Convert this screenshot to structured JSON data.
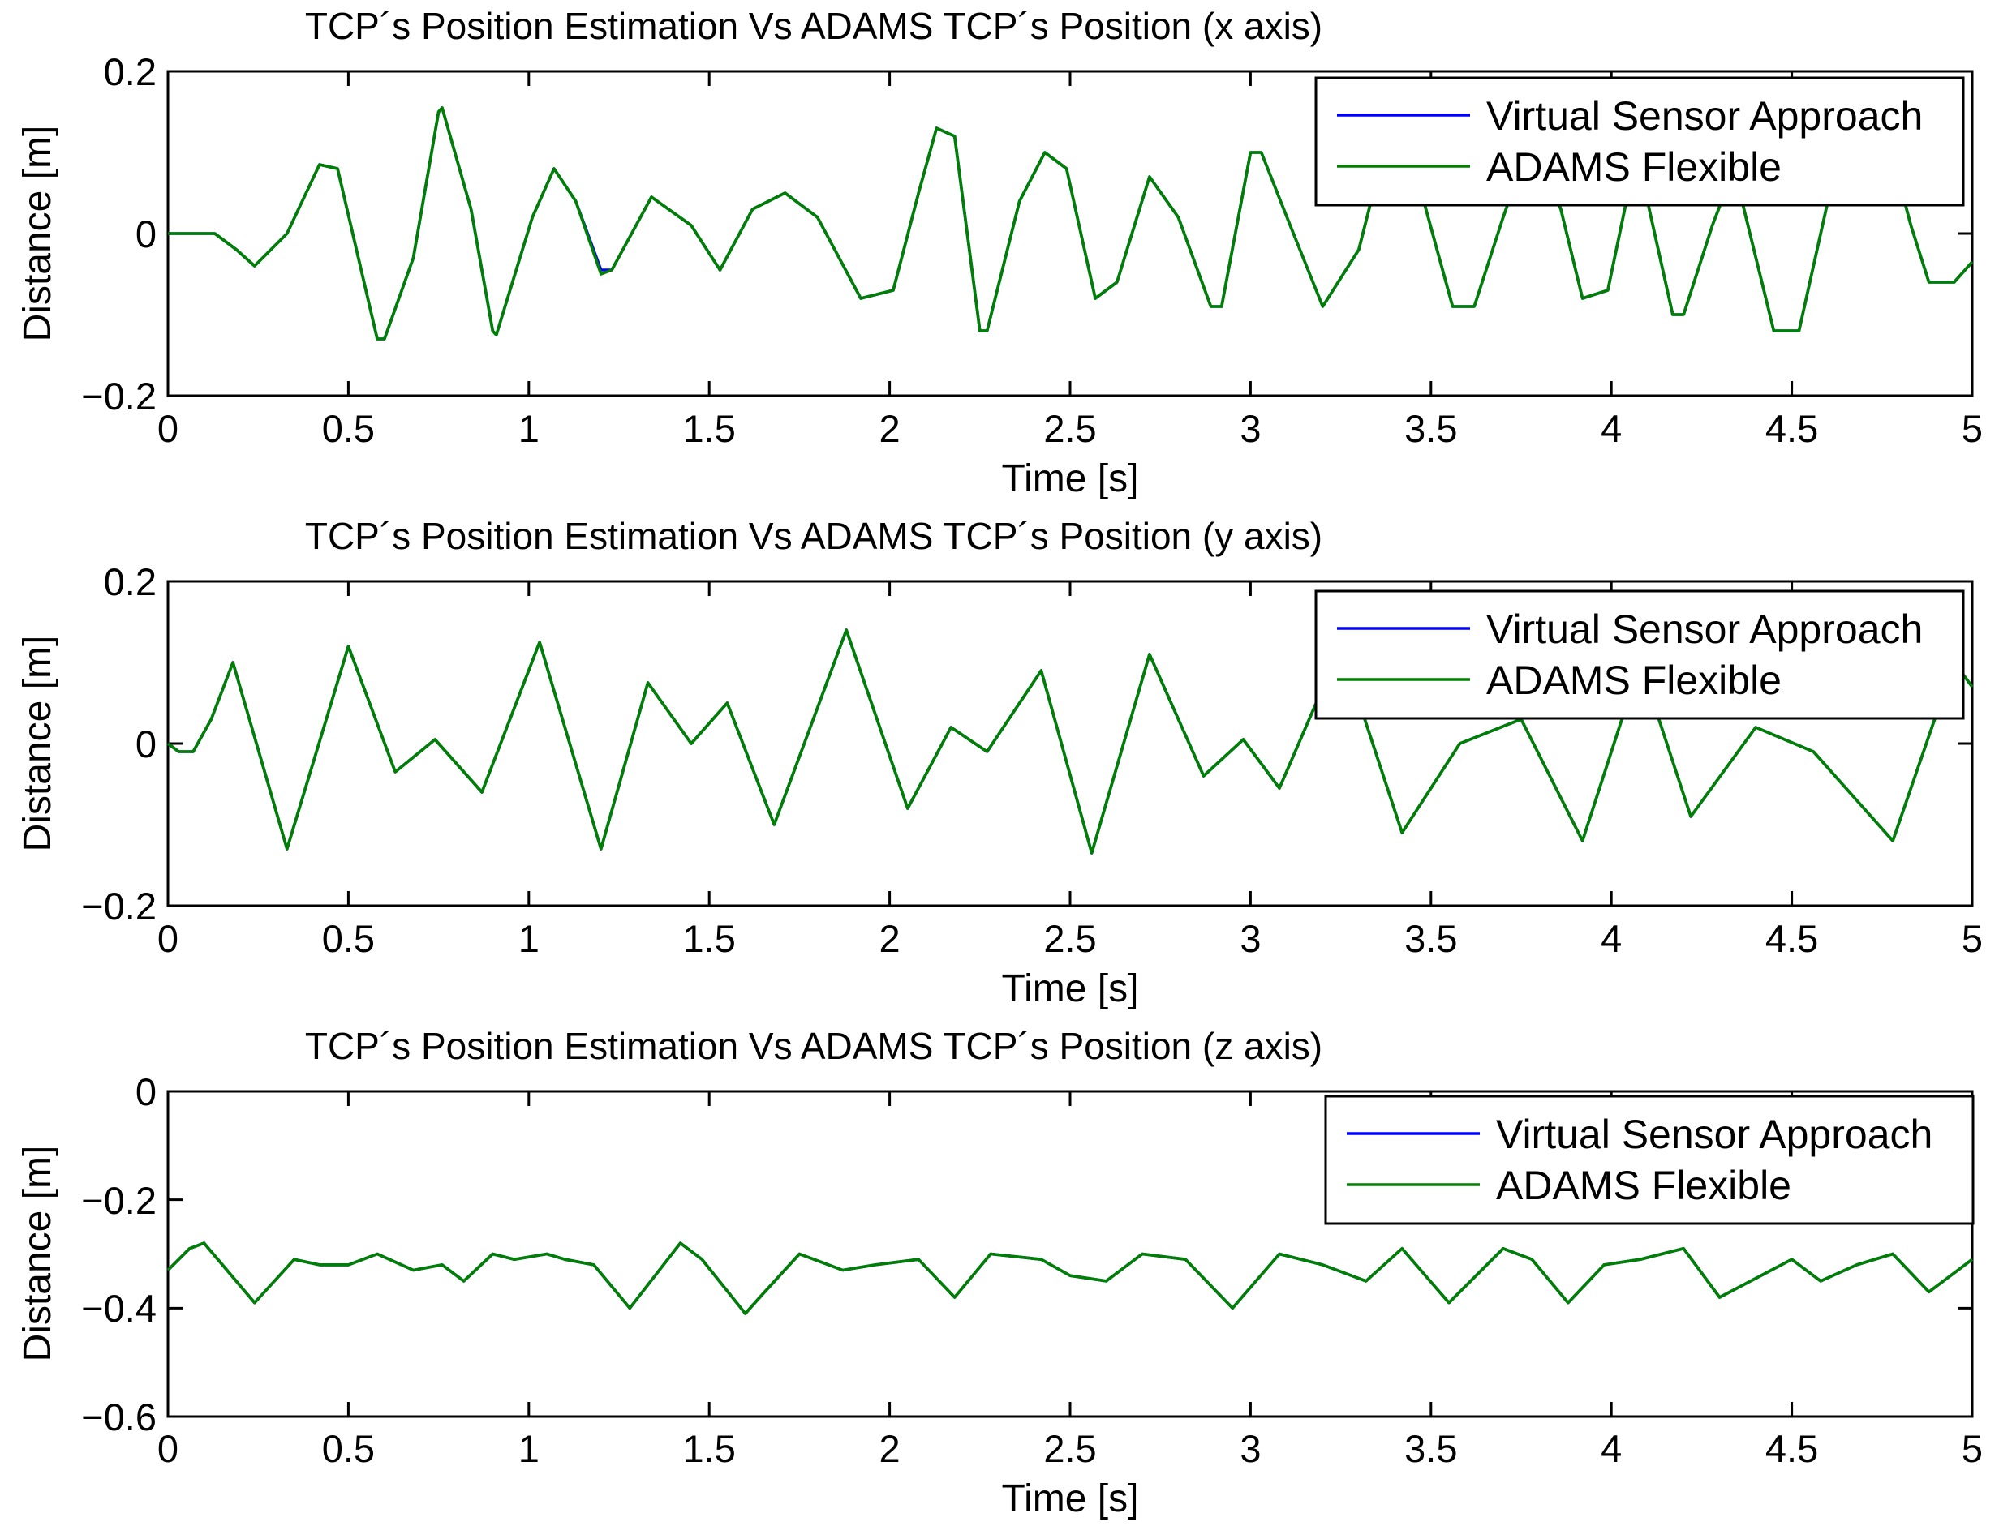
{
  "colors": {
    "virtual": "#0000ff",
    "adams": "#008000"
  },
  "chart_data": [
    {
      "type": "line",
      "title": "TCP´s Position Estimation Vs ADAMS TCP´s Position (x axis)",
      "xlabel": "Time [s]",
      "ylabel": "Distance [m]",
      "xlim": [
        0,
        5
      ],
      "ylim": [
        -0.2,
        0.2
      ],
      "xticks": [
        0,
        0.5,
        1,
        1.5,
        2,
        2.5,
        3,
        3.5,
        4,
        4.5,
        5
      ],
      "xtick_labels": [
        "0",
        "0.5",
        "1",
        "1.5",
        "2",
        "2.5",
        "3",
        "3.5",
        "4",
        "4.5",
        "5"
      ],
      "yticks": [
        -0.2,
        0,
        0.2
      ],
      "ytick_labels": [
        "−0.2",
        "0",
        "0.2"
      ],
      "legend": {
        "position": "top-right",
        "entries": [
          "Virtual Sensor Approach",
          "ADAMS Flexible"
        ]
      },
      "x": [
        0,
        0.05,
        0.13,
        0.19,
        0.24,
        0.33,
        0.42,
        0.47,
        0.58,
        0.6,
        0.68,
        0.75,
        0.76,
        0.84,
        0.9,
        0.91,
        1.01,
        1.07,
        1.13,
        1.2,
        1.23,
        1.34,
        1.45,
        1.53,
        1.62,
        1.71,
        1.8,
        1.92,
        2.01,
        2.08,
        2.13,
        2.18,
        2.25,
        2.27,
        2.36,
        2.43,
        2.49,
        2.57,
        2.63,
        2.72,
        2.8,
        2.89,
        2.92,
        3.0,
        3.03,
        3.11,
        3.2,
        3.3,
        3.38,
        3.48,
        3.56,
        3.62,
        3.7,
        3.78,
        3.86,
        3.92,
        3.99,
        4.07,
        4.17,
        4.2,
        4.28,
        4.34,
        4.45,
        4.52,
        4.6,
        4.7,
        4.77,
        4.83,
        4.88,
        4.95,
        5.0
      ],
      "series": [
        {
          "name": "Virtual Sensor Approach",
          "values": [
            0,
            0,
            0,
            -0.02,
            -0.04,
            0,
            0.085,
            0.08,
            -0.13,
            -0.13,
            -0.03,
            0.15,
            0.155,
            0.03,
            -0.12,
            -0.125,
            0.02,
            0.08,
            0.04,
            -0.045,
            -0.045,
            0.045,
            0.01,
            -0.045,
            0.03,
            0.05,
            0.02,
            -0.08,
            -0.07,
            0.05,
            0.13,
            0.12,
            -0.12,
            -0.12,
            0.04,
            0.1,
            0.08,
            -0.08,
            -0.06,
            0.07,
            0.02,
            -0.09,
            -0.09,
            0.1,
            0.1,
            0.01,
            -0.09,
            -0.02,
            0.12,
            0.04,
            -0.09,
            -0.09,
            0.02,
            0.12,
            0.03,
            -0.08,
            -0.07,
            0.1,
            -0.1,
            -0.1,
            0.01,
            0.08,
            -0.12,
            -0.12,
            0.04,
            0.11,
            0.11,
            0.01,
            -0.06,
            -0.06,
            -0.035
          ]
        },
        {
          "name": "ADAMS Flexible",
          "values": [
            0,
            0,
            0,
            -0.02,
            -0.04,
            0,
            0.085,
            0.08,
            -0.13,
            -0.13,
            -0.03,
            0.15,
            0.155,
            0.03,
            -0.12,
            -0.125,
            0.02,
            0.08,
            0.04,
            -0.05,
            -0.045,
            0.045,
            0.01,
            -0.045,
            0.03,
            0.05,
            0.02,
            -0.08,
            -0.07,
            0.05,
            0.13,
            0.12,
            -0.12,
            -0.12,
            0.04,
            0.1,
            0.08,
            -0.08,
            -0.06,
            0.07,
            0.02,
            -0.09,
            -0.09,
            0.1,
            0.1,
            0.01,
            -0.09,
            -0.02,
            0.12,
            0.04,
            -0.09,
            -0.09,
            0.02,
            0.12,
            0.03,
            -0.08,
            -0.07,
            0.1,
            -0.1,
            -0.1,
            0.01,
            0.08,
            -0.12,
            -0.12,
            0.04,
            0.11,
            0.11,
            0.01,
            -0.06,
            -0.06,
            -0.035
          ]
        }
      ]
    },
    {
      "type": "line",
      "title": "TCP´s Position Estimation Vs ADAMS TCP´s Position (y axis)",
      "xlabel": "Time [s]",
      "ylabel": "Distance [m]",
      "xlim": [
        0,
        5
      ],
      "ylim": [
        -0.2,
        0.2
      ],
      "xticks": [
        0,
        0.5,
        1,
        1.5,
        2,
        2.5,
        3,
        3.5,
        4,
        4.5,
        5
      ],
      "xtick_labels": [
        "0",
        "0.5",
        "1",
        "1.5",
        "2",
        "2.5",
        "3",
        "3.5",
        "4",
        "4.5",
        "5"
      ],
      "yticks": [
        -0.2,
        0,
        0.2
      ],
      "ytick_labels": [
        "−0.2",
        "0",
        "0.2"
      ],
      "legend": {
        "position": "top-right",
        "entries": [
          "Virtual Sensor Approach",
          "ADAMS Flexible"
        ]
      },
      "x": [
        0,
        0.03,
        0.07,
        0.12,
        0.18,
        0.33,
        0.5,
        0.63,
        0.74,
        0.87,
        1.03,
        1.2,
        1.33,
        1.45,
        1.55,
        1.68,
        1.88,
        2.05,
        2.17,
        2.27,
        2.42,
        2.56,
        2.72,
        2.87,
        2.98,
        3.08,
        3.25,
        3.42,
        3.58,
        3.75,
        3.92,
        4.08,
        4.22,
        4.4,
        4.56,
        4.78,
        4.95,
        5.0
      ],
      "series": [
        {
          "name": "Virtual Sensor Approach",
          "values": [
            0,
            -0.01,
            -0.01,
            0.03,
            0.1,
            -0.13,
            0.12,
            -0.035,
            0.005,
            -0.06,
            0.125,
            -0.13,
            0.075,
            0.0,
            0.05,
            -0.1,
            0.14,
            -0.08,
            0.02,
            -0.01,
            0.09,
            -0.135,
            0.11,
            -0.04,
            0.005,
            -0.055,
            0.12,
            -0.11,
            0.0,
            0.03,
            -0.12,
            0.1,
            -0.09,
            0.02,
            -0.01,
            -0.12,
            0.1,
            0.07
          ]
        },
        {
          "name": "ADAMS Flexible",
          "values": [
            0,
            -0.01,
            -0.01,
            0.03,
            0.1,
            -0.13,
            0.12,
            -0.035,
            0.005,
            -0.06,
            0.125,
            -0.13,
            0.075,
            0.0,
            0.05,
            -0.1,
            0.14,
            -0.08,
            0.02,
            -0.01,
            0.09,
            -0.135,
            0.11,
            -0.04,
            0.005,
            -0.055,
            0.12,
            -0.11,
            0.0,
            0.03,
            -0.12,
            0.1,
            -0.09,
            0.02,
            -0.01,
            -0.12,
            0.1,
            0.07
          ]
        }
      ]
    },
    {
      "type": "line",
      "title": "TCP´s Position Estimation Vs ADAMS TCP´s Position (z axis)",
      "xlabel": "Time [s]",
      "ylabel": "Distance [m]",
      "xlim": [
        0,
        5
      ],
      "ylim": [
        -0.6,
        0
      ],
      "xticks": [
        0,
        0.5,
        1,
        1.5,
        2,
        2.5,
        3,
        3.5,
        4,
        4.5,
        5
      ],
      "xtick_labels": [
        "0",
        "0.5",
        "1",
        "1.5",
        "2",
        "2.5",
        "3",
        "3.5",
        "4",
        "4.5",
        "5"
      ],
      "yticks": [
        -0.6,
        -0.4,
        -0.2,
        0
      ],
      "ytick_labels": [
        "−0.6",
        "−0.4",
        "−0.2",
        "0"
      ],
      "legend": {
        "position": "top-right",
        "entries": [
          "Virtual Sensor Approach",
          "ADAMS Flexible"
        ]
      },
      "x": [
        0,
        0.06,
        0.1,
        0.24,
        0.35,
        0.42,
        0.5,
        0.58,
        0.68,
        0.76,
        0.82,
        0.9,
        0.96,
        1.05,
        1.1,
        1.18,
        1.28,
        1.42,
        1.48,
        1.6,
        1.64,
        1.75,
        1.87,
        1.96,
        2.08,
        2.18,
        2.28,
        2.42,
        2.5,
        2.6,
        2.7,
        2.82,
        2.95,
        3.08,
        3.2,
        3.32,
        3.42,
        3.55,
        3.7,
        3.78,
        3.88,
        3.98,
        4.08,
        4.2,
        4.3,
        4.5,
        4.58,
        4.68,
        4.78,
        4.88,
        5.0
      ],
      "series": [
        {
          "name": "Virtual Sensor Approach",
          "values": [
            -0.33,
            -0.29,
            -0.28,
            -0.39,
            -0.31,
            -0.32,
            -0.32,
            -0.3,
            -0.33,
            -0.32,
            -0.35,
            -0.3,
            -0.31,
            -0.3,
            -0.31,
            -0.32,
            -0.4,
            -0.28,
            -0.31,
            -0.41,
            -0.38,
            -0.3,
            -0.33,
            -0.32,
            -0.31,
            -0.38,
            -0.3,
            -0.31,
            -0.34,
            -0.35,
            -0.3,
            -0.31,
            -0.4,
            -0.3,
            -0.32,
            -0.35,
            -0.29,
            -0.39,
            -0.29,
            -0.31,
            -0.39,
            -0.32,
            -0.31,
            -0.29,
            -0.38,
            -0.31,
            -0.35,
            -0.32,
            -0.3,
            -0.37,
            -0.31
          ]
        },
        {
          "name": "ADAMS Flexible",
          "values": [
            -0.33,
            -0.29,
            -0.28,
            -0.39,
            -0.31,
            -0.32,
            -0.32,
            -0.3,
            -0.33,
            -0.32,
            -0.35,
            -0.3,
            -0.31,
            -0.3,
            -0.31,
            -0.32,
            -0.4,
            -0.28,
            -0.31,
            -0.41,
            -0.38,
            -0.3,
            -0.33,
            -0.32,
            -0.31,
            -0.38,
            -0.3,
            -0.31,
            -0.34,
            -0.35,
            -0.3,
            -0.31,
            -0.4,
            -0.3,
            -0.32,
            -0.35,
            -0.29,
            -0.39,
            -0.29,
            -0.31,
            -0.39,
            -0.32,
            -0.31,
            -0.29,
            -0.38,
            -0.31,
            -0.35,
            -0.32,
            -0.3,
            -0.37,
            -0.31
          ]
        }
      ]
    }
  ]
}
